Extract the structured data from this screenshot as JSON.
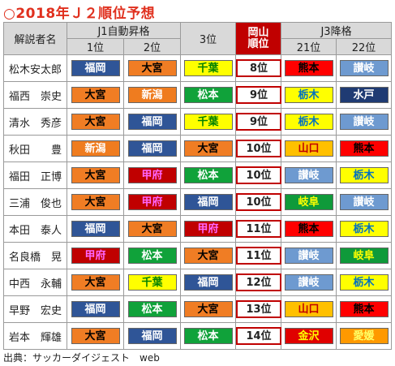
{
  "title": "○2018年Ｊ２順位予想",
  "headers": {
    "commentator": "解説者名",
    "j1_group": "J1自動昇格",
    "j1_1st": "1位",
    "j1_2nd": "2位",
    "third": "3位",
    "okayama": "岡山\n順位",
    "j3_group": "J3降格",
    "j3_21st": "21位",
    "j3_22nd": "22位"
  },
  "rows": [
    {
      "name": "松木安太郎",
      "p1": "福岡",
      "p2": "大宮",
      "p3": "千葉",
      "okayama": "8位",
      "p21": "熊本",
      "p22": "讃岐"
    },
    {
      "name": "福西　崇史",
      "p1": "大宮",
      "p2": "新潟",
      "p3": "松本",
      "okayama": "9位",
      "p21": "栃木",
      "p22": "水戸"
    },
    {
      "name": "清水　秀彦",
      "p1": "大宮",
      "p2": "福岡",
      "p3": "千葉",
      "okayama": "9位",
      "p21": "栃木",
      "p22": "讃岐"
    },
    {
      "name": "秋田　　豊",
      "p1": "新潟",
      "p2": "福岡",
      "p3": "大宮",
      "okayama": "10位",
      "p21": "山口",
      "p22": "熊本"
    },
    {
      "name": "福田　正博",
      "p1": "大宮",
      "p2": "甲府",
      "p3": "松本",
      "okayama": "10位",
      "p21": "讃岐",
      "p22": "栃木"
    },
    {
      "name": "三浦　俊也",
      "p1": "大宮",
      "p2": "甲府",
      "p3": "福岡",
      "okayama": "10位",
      "p21": "岐阜",
      "p22": "讃岐"
    },
    {
      "name": "本田　泰人",
      "p1": "福岡",
      "p2": "大宮",
      "p3": "甲府",
      "okayama": "11位",
      "p21": "熊本",
      "p22": "栃木"
    },
    {
      "name": "名良橋　晃",
      "p1": "甲府",
      "p2": "松本",
      "p3": "大宮",
      "okayama": "11位",
      "p21": "讃岐",
      "p22": "岐阜"
    },
    {
      "name": "中西　永輔",
      "p1": "大宮",
      "p2": "千葉",
      "p3": "福岡",
      "okayama": "12位",
      "p21": "讃岐",
      "p22": "栃木"
    },
    {
      "name": "早野　宏史",
      "p1": "福岡",
      "p2": "松本",
      "p3": "大宮",
      "okayama": "13位",
      "p21": "山口",
      "p22": "熊本"
    },
    {
      "name": "岩本　輝雄",
      "p1": "大宮",
      "p2": "福岡",
      "p3": "松本",
      "okayama": "14位",
      "p21": "金沢",
      "p22": "愛媛"
    }
  ],
  "team_colors": {
    "福岡": "c-fukuoka",
    "大宮": "c-omiya",
    "新潟": "c-niigata",
    "千葉": "c-chiba",
    "松本": "c-matsumoto",
    "甲府": "c-kofu",
    "熊本": "c-kumamoto",
    "讃岐": "c-sanuki",
    "栃木": "c-tochigi",
    "水戸": "c-mito",
    "岐阜": "c-gifu",
    "山口": "c-yamaguchi",
    "金沢": "c-kanazawa",
    "愛媛": "c-ehime"
  },
  "source": "出典：サッカーダイジェスト　web"
}
